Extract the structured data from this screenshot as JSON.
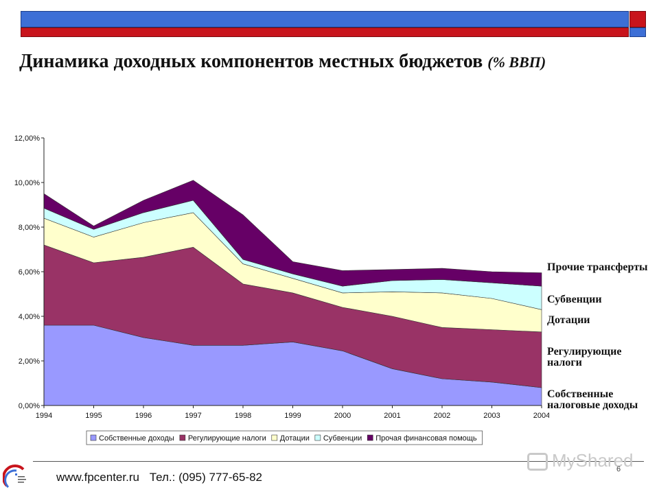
{
  "header": {
    "title_main": "Динамика доходных компонентов местных бюджетов",
    "title_sub": "(% ВВП)"
  },
  "chart_data": {
    "type": "area",
    "stacked": true,
    "x": [
      "1994",
      "1995",
      "1996",
      "1997",
      "1998",
      "1999",
      "2000",
      "2001",
      "2002",
      "2003",
      "2004"
    ],
    "ylim": [
      0,
      12
    ],
    "yticks": [
      "0,00%",
      "2,00%",
      "4,00%",
      "6,00%",
      "8,00%",
      "10,00%",
      "12,00%"
    ],
    "ytick_values": [
      0,
      2,
      4,
      6,
      8,
      10,
      12
    ],
    "series": [
      {
        "name": "Собственные доходы",
        "color": "#9999ff",
        "values": [
          3.6,
          3.6,
          3.05,
          2.7,
          2.7,
          2.85,
          2.45,
          1.65,
          1.2,
          1.05,
          0.8
        ]
      },
      {
        "name": "Регулирующие налоги",
        "color": "#993366",
        "values": [
          3.6,
          2.8,
          3.6,
          4.4,
          2.75,
          2.2,
          1.95,
          2.35,
          2.3,
          2.35,
          2.5
        ]
      },
      {
        "name": "Дотации",
        "color": "#ffffcc",
        "values": [
          1.2,
          1.15,
          1.55,
          1.55,
          0.9,
          0.65,
          0.65,
          1.1,
          1.55,
          1.4,
          1.0
        ]
      },
      {
        "name": "Субвенции",
        "color": "#ccffff",
        "values": [
          0.45,
          0.35,
          0.45,
          0.55,
          0.2,
          0.2,
          0.3,
          0.5,
          0.6,
          0.7,
          1.05
        ]
      },
      {
        "name": "Прочая финансовая помощь",
        "color": "#660066",
        "values": [
          0.65,
          0.15,
          0.55,
          0.9,
          2.0,
          0.55,
          0.7,
          0.5,
          0.5,
          0.5,
          0.6
        ]
      }
    ],
    "right_labels": [
      "Прочие трансферты",
      "Субвенции",
      "Дотации",
      "Регулирующие налоги",
      "Собственные налоговые доходы"
    ],
    "legend_position": "bottom"
  },
  "footer": {
    "website": "www.fpcenter.ru",
    "phone": "Тел.: (095) 777-65-82",
    "page_number": "6",
    "watermark": "MyShared"
  },
  "colors": {
    "bar_blue": "#3d6fd6",
    "bar_red": "#c8141c",
    "plot_bg": "#ffffff"
  },
  "icons": {
    "logo": "fpcenter-logo-icon",
    "watermark": "myshared-watermark-icon"
  }
}
